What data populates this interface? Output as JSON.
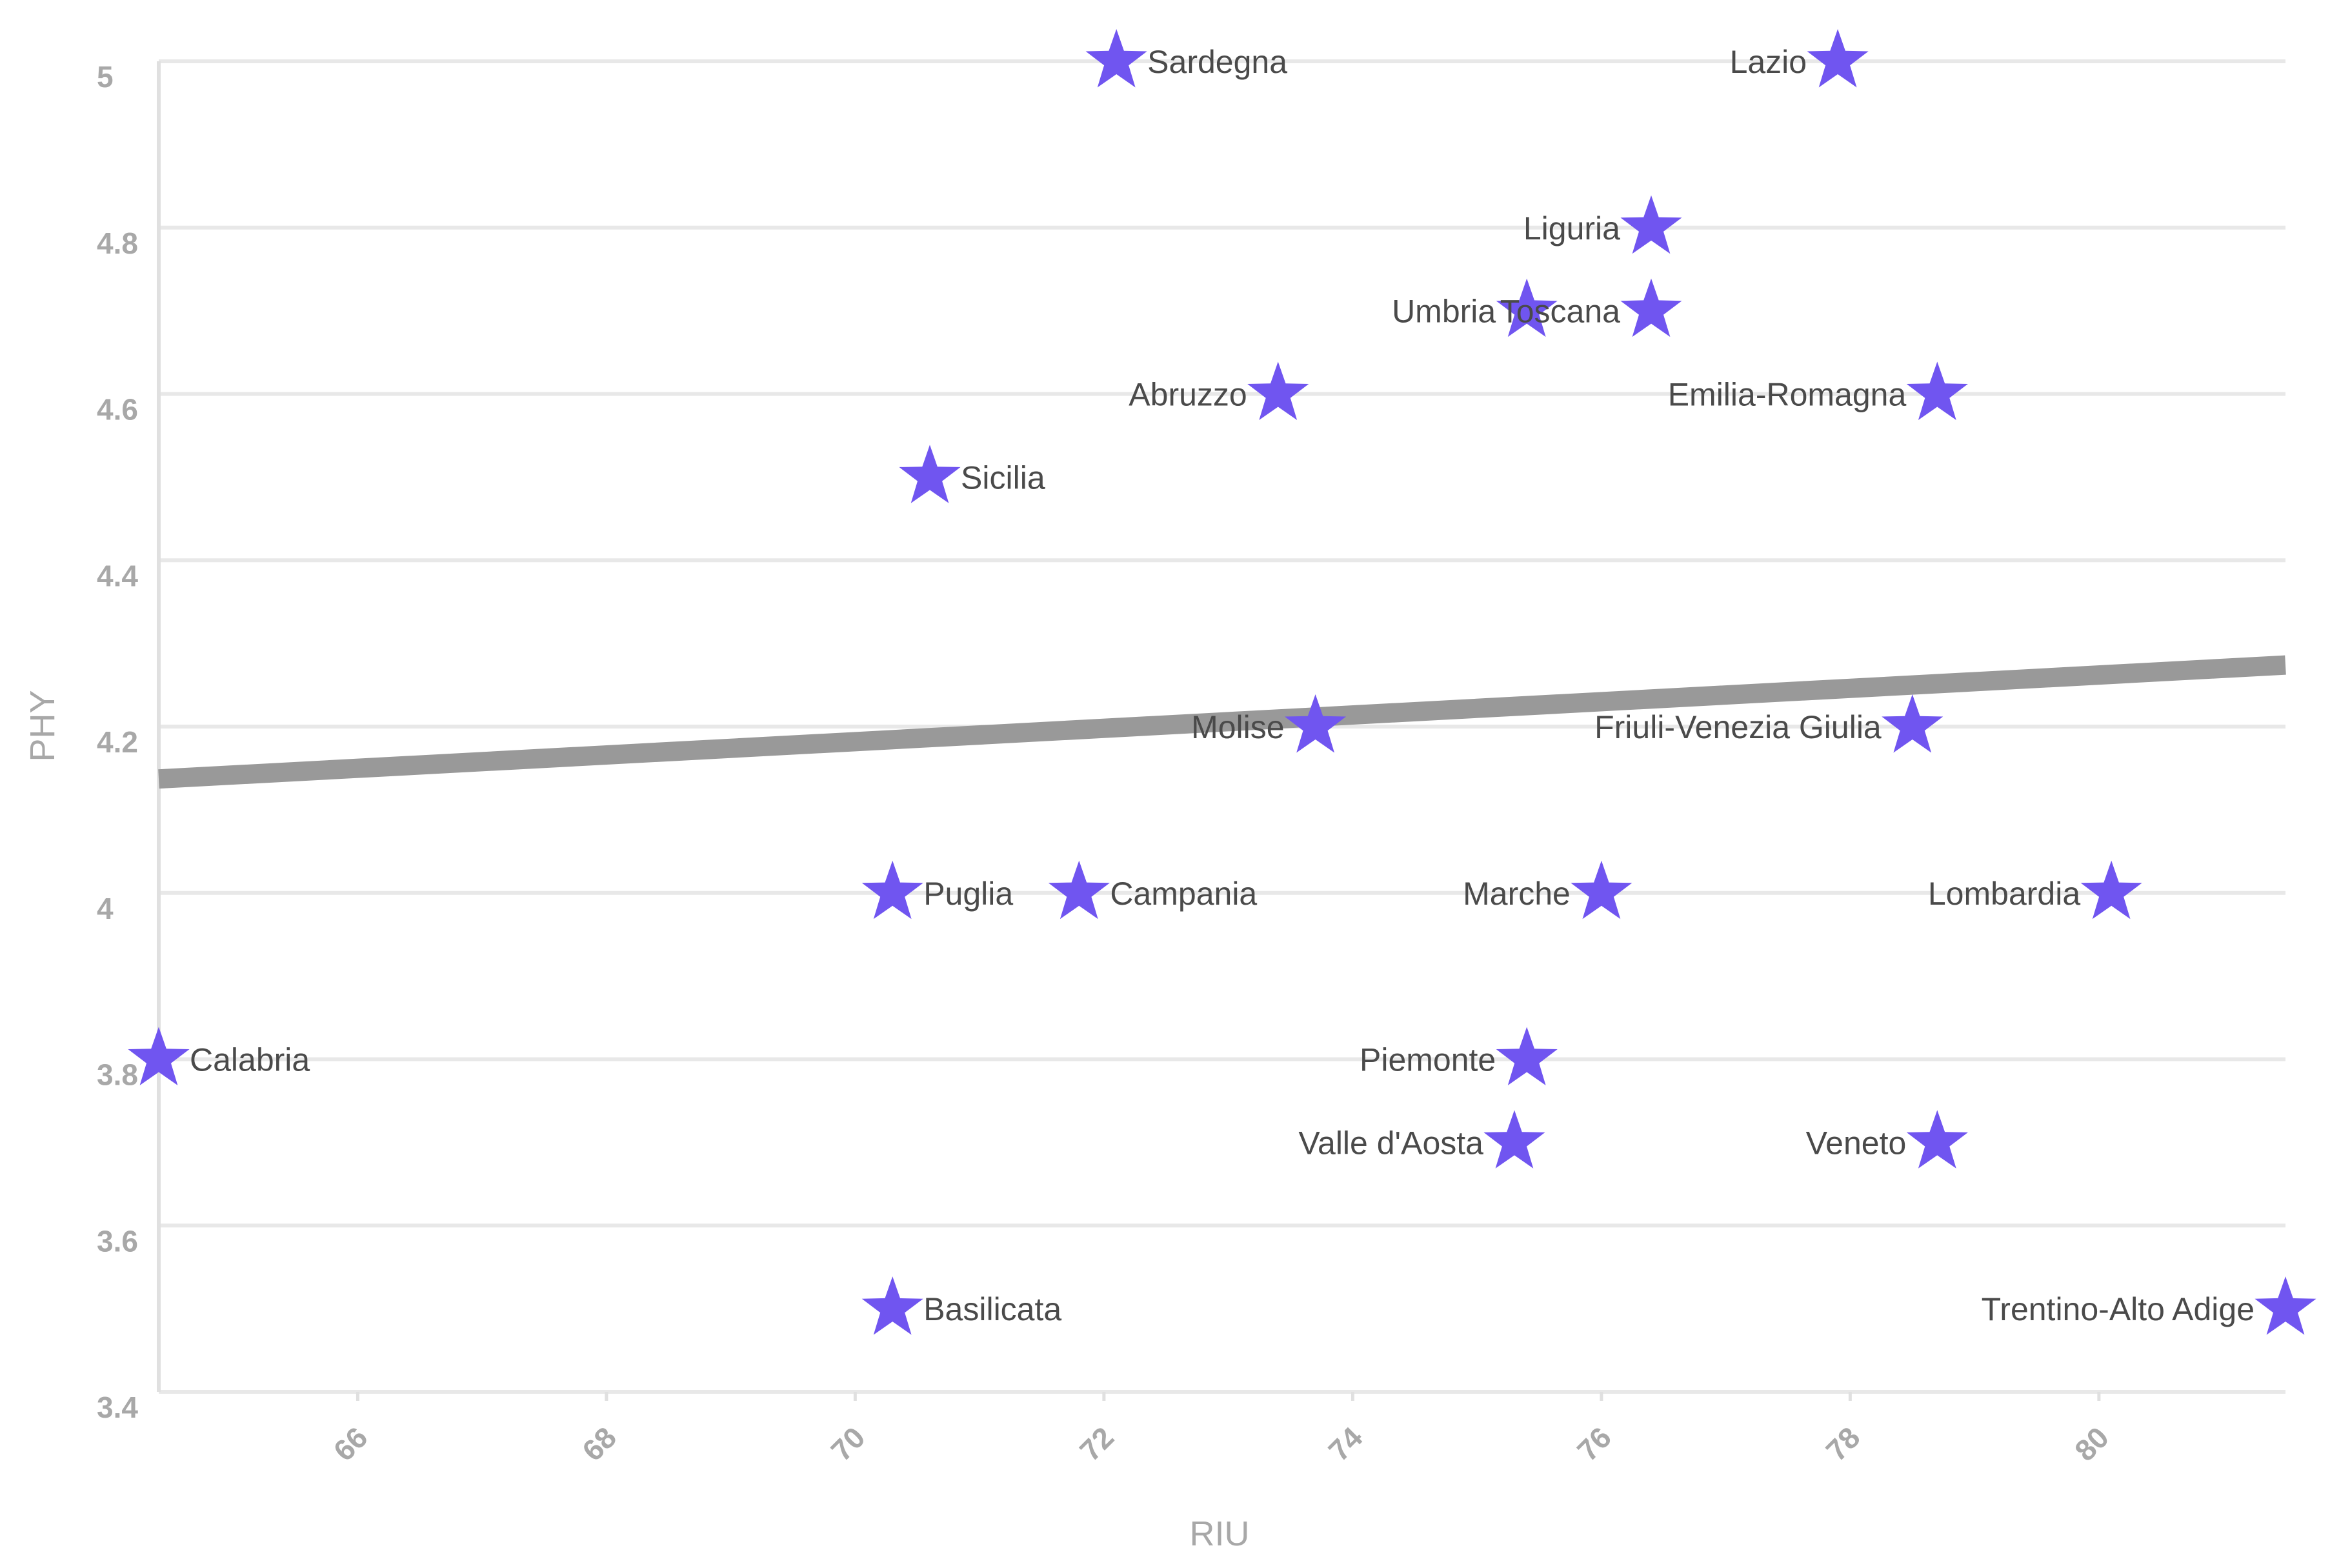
{
  "colors": {
    "marker": "#7055f0",
    "trend": "#999999",
    "grid": "#e8e8e8",
    "tick": "#a8a8a8",
    "label": "#4a4a4a"
  },
  "chart_data": {
    "type": "scatter",
    "title": "",
    "xlabel": "RIU",
    "ylabel": "PHY",
    "xlim": [
      64.4,
      81.5
    ],
    "ylim": [
      3.4,
      5.0
    ],
    "x_ticks": [
      "66",
      "68",
      "70",
      "72",
      "74",
      "76",
      "78",
      "80"
    ],
    "y_ticks": [
      "3.4",
      "3.6",
      "3.8",
      "4",
      "4.2",
      "4.4",
      "4.6",
      "4.8",
      "5"
    ],
    "grid": true,
    "marker": "star",
    "points": [
      {
        "label": "Sardegna",
        "x": 72.1,
        "y": 5.0
      },
      {
        "label": "Lazio",
        "x": 77.9,
        "y": 5.0
      },
      {
        "label": "Liguria",
        "x": 76.4,
        "y": 4.8
      },
      {
        "label": "Umbria",
        "x": 75.4,
        "y": 4.7
      },
      {
        "label": "Toscana",
        "x": 76.4,
        "y": 4.7
      },
      {
        "label": "Abruzzo",
        "x": 73.4,
        "y": 4.6
      },
      {
        "label": "Emilia-Romagna",
        "x": 78.7,
        "y": 4.6
      },
      {
        "label": "Sicilia",
        "x": 70.6,
        "y": 4.5
      },
      {
        "label": "Molise",
        "x": 73.7,
        "y": 4.2
      },
      {
        "label": "Friuli-Venezia Giulia",
        "x": 78.5,
        "y": 4.2
      },
      {
        "label": "Puglia",
        "x": 70.3,
        "y": 4.0
      },
      {
        "label": "Campania",
        "x": 71.8,
        "y": 4.0
      },
      {
        "label": "Marche",
        "x": 76.0,
        "y": 4.0
      },
      {
        "label": "Lombardia",
        "x": 80.1,
        "y": 4.0
      },
      {
        "label": "Calabria",
        "x": 64.4,
        "y": 3.8
      },
      {
        "label": "Piemonte",
        "x": 75.4,
        "y": 3.8
      },
      {
        "label": "Valle d'Aosta",
        "x": 75.3,
        "y": 3.7
      },
      {
        "label": "Veneto",
        "x": 78.7,
        "y": 3.7
      },
      {
        "label": "Basilicata",
        "x": 70.3,
        "y": 3.5
      },
      {
        "label": "Trentino-Alto Adige",
        "x": 81.5,
        "y": 3.5
      }
    ],
    "trend_line": {
      "x": [
        64.4,
        81.5
      ],
      "y": [
        4.137,
        4.274
      ]
    }
  }
}
